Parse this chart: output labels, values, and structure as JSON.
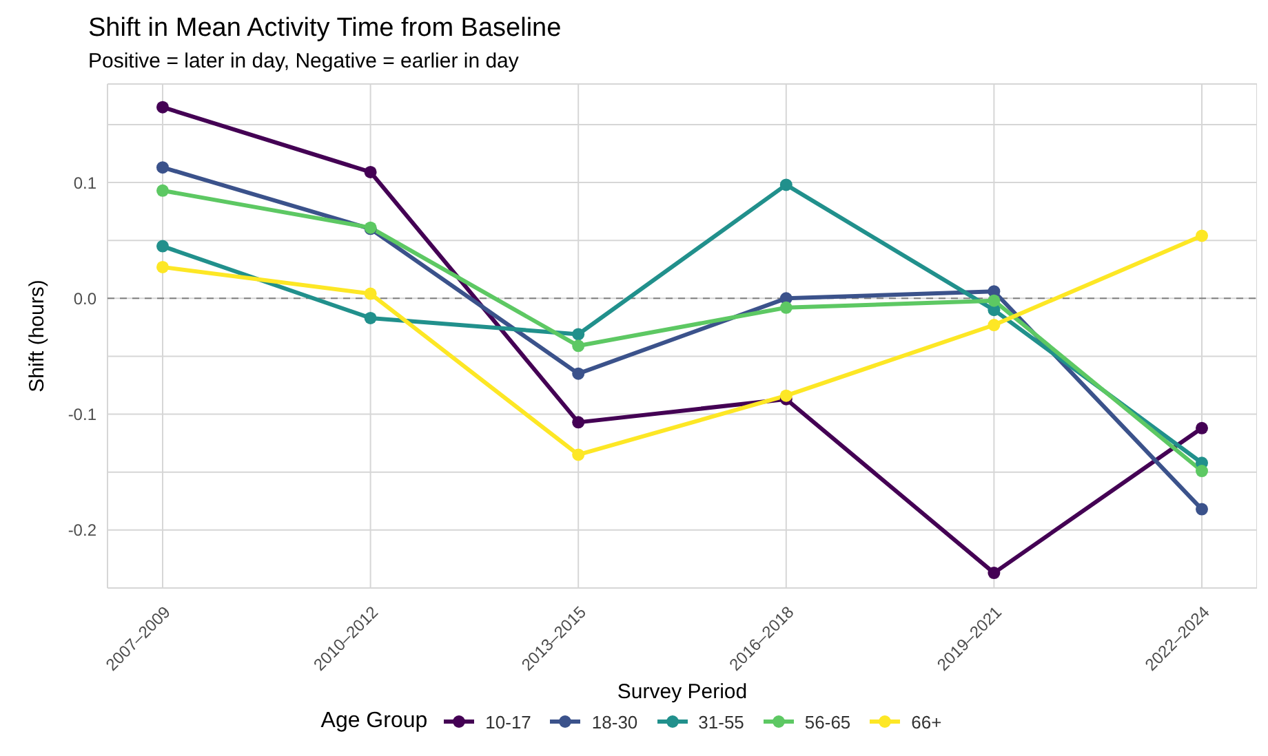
{
  "chart_data": {
    "type": "line",
    "title": "Shift in Mean Activity Time from Baseline",
    "subtitle": "Positive = later in day, Negative = earlier in day",
    "xlabel": "Survey Period",
    "ylabel": "Shift (hours)",
    "legend_title": "Age Group",
    "categories": [
      "2007–2009",
      "2010–2012",
      "2013–2015",
      "2016–2018",
      "2019–2021",
      "2022–2024"
    ],
    "series": [
      {
        "name": "10-17",
        "color": "#440154",
        "values": [
          0.165,
          0.109,
          -0.107,
          -0.087,
          -0.237,
          -0.112
        ]
      },
      {
        "name": "18-30",
        "color": "#3b528b",
        "values": [
          0.113,
          0.06,
          -0.065,
          0.0,
          0.006,
          -0.182
        ]
      },
      {
        "name": "31-55",
        "color": "#21908c",
        "values": [
          0.045,
          -0.017,
          -0.031,
          0.098,
          -0.01,
          -0.142
        ]
      },
      {
        "name": "56-65",
        "color": "#5dc863",
        "values": [
          0.093,
          0.061,
          -0.041,
          -0.008,
          -0.002,
          -0.149
        ]
      },
      {
        "name": "66+",
        "color": "#fde725",
        "values": [
          0.027,
          0.004,
          -0.135,
          -0.084,
          -0.023,
          0.054
        ]
      }
    ],
    "ylim": [
      -0.25,
      0.185
    ],
    "yticks": [
      {
        "value": -0.25,
        "label": null
      },
      {
        "value": -0.2,
        "label": "-0.2"
      },
      {
        "value": -0.15,
        "label": null
      },
      {
        "value": -0.1,
        "label": "-0.1"
      },
      {
        "value": -0.05,
        "label": null
      },
      {
        "value": 0,
        "label": "0.0"
      },
      {
        "value": 0.05,
        "label": null
      },
      {
        "value": 0.1,
        "label": "0.1"
      },
      {
        "value": 0.15,
        "label": null
      }
    ],
    "ref_lines": [
      {
        "axis": "y",
        "value": 0,
        "color": "#808080",
        "line_style": "dashed"
      }
    ],
    "grid": true,
    "legend": "bottom",
    "marker": "circle",
    "line_style": "solid"
  }
}
